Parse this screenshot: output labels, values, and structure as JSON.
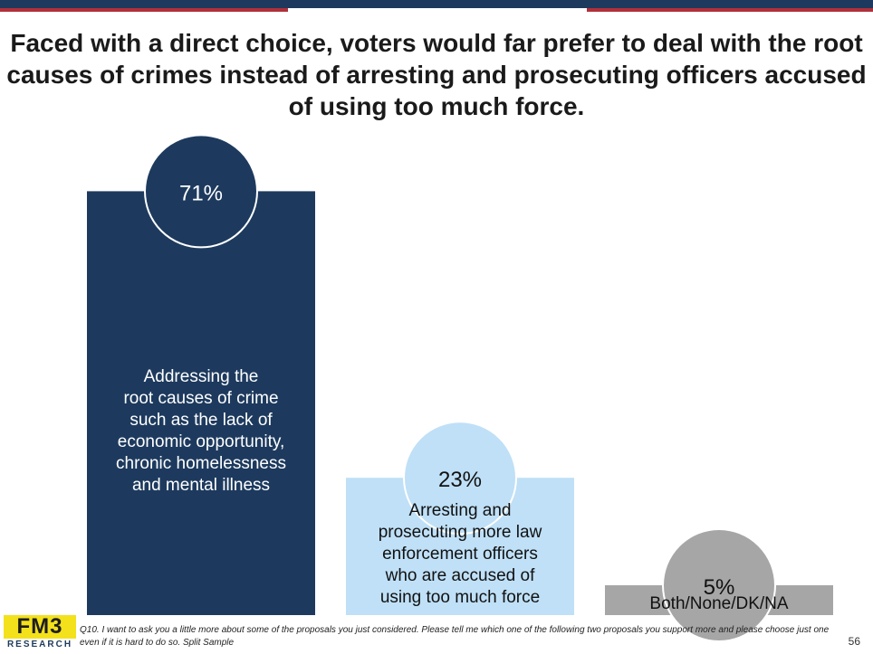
{
  "title": "Faced with a direct choice, voters would far prefer to deal with the root causes of crimes instead of arresting and prosecuting officers accused of using too much force.",
  "chart_data": {
    "type": "bar",
    "categories": [
      "Addressing the root causes of crime such as the lack of economic opportunity, chronic homelessness and mental illness",
      "Arresting and prosecuting more law enforcement officers who are accused of using too much force",
      "Both/None/DK/NA"
    ],
    "values": [
      71,
      23,
      5
    ],
    "value_labels": [
      "71%",
      "23%",
      "5%"
    ],
    "label_lines": [
      [
        "Addressing the",
        "root causes of crime",
        "such as the lack of",
        "economic opportunity,",
        "chronic homelessness",
        "and mental illness"
      ],
      [
        "Arresting and",
        "prosecuting more law",
        "enforcement officers",
        "who are accused of",
        "using too much force"
      ],
      [
        "Both/None/DK/NA"
      ]
    ],
    "colors": [
      "#1d3a5e",
      "#bfe0f7",
      "#a6a6a6"
    ],
    "text_colors": [
      "#ffffff",
      "#111111",
      "#111111"
    ],
    "ylim": [
      0,
      100
    ]
  },
  "footnote": "Q10. I want to ask you a little more about some of the proposals you just considered. Please tell me which one of the following two proposals you support more and please choose just one even if it is hard to do so. Split Sample",
  "page_number": "56",
  "logo": {
    "top": "FM3",
    "bottom": "RESEARCH"
  }
}
